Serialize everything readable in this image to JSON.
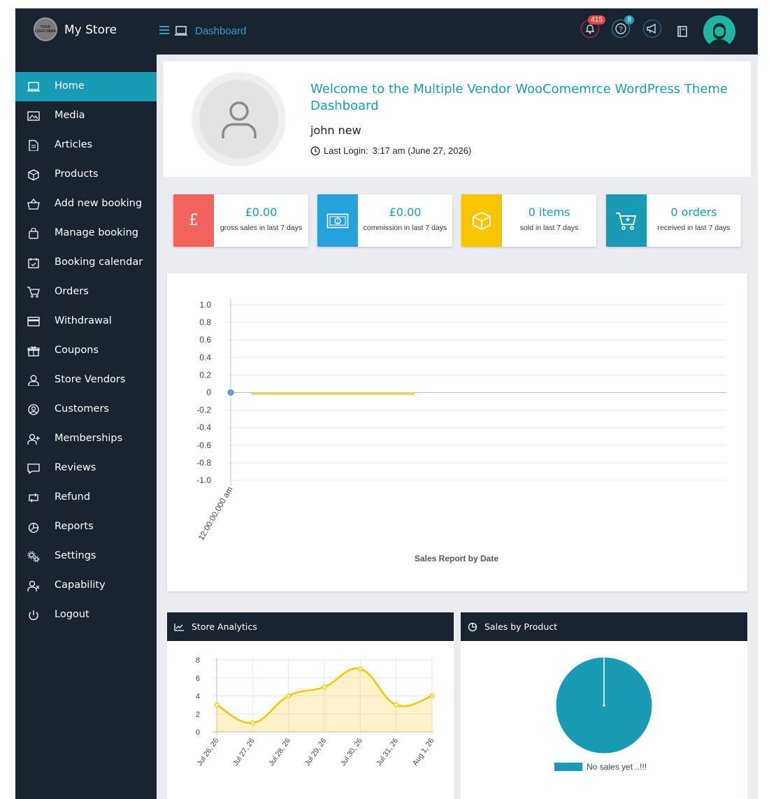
{
  "header": {
    "logo_text": "YOUR LOGO HERE",
    "store_name": "My Store",
    "breadcrumb": "Dashboard",
    "notifications_count": "415",
    "help_count": "8"
  },
  "sidebar": {
    "items": [
      {
        "label": "Home",
        "icon": "home-icon"
      },
      {
        "label": "Media",
        "icon": "media-icon"
      },
      {
        "label": "Articles",
        "icon": "articles-icon"
      },
      {
        "label": "Products",
        "icon": "products-icon"
      },
      {
        "label": "Add new booking",
        "icon": "basket-icon"
      },
      {
        "label": "Manage booking",
        "icon": "bag-icon"
      },
      {
        "label": "Booking calendar",
        "icon": "calendar-icon"
      },
      {
        "label": "Orders",
        "icon": "cart-icon"
      },
      {
        "label": "Withdrawal",
        "icon": "card-icon"
      },
      {
        "label": "Coupons",
        "icon": "gift-icon"
      },
      {
        "label": "Store Vendors",
        "icon": "user-icon"
      },
      {
        "label": "Customers",
        "icon": "user-circle-icon"
      },
      {
        "label": "Memberships",
        "icon": "user-plus-icon"
      },
      {
        "label": "Reviews",
        "icon": "comment-icon"
      },
      {
        "label": "Refund",
        "icon": "retweet-icon"
      },
      {
        "label": "Reports",
        "icon": "pie-icon"
      },
      {
        "label": "Settings",
        "icon": "gears-icon"
      },
      {
        "label": "Capability",
        "icon": "user-times-icon"
      },
      {
        "label": "Logout",
        "icon": "power-icon"
      }
    ]
  },
  "welcome": {
    "title": "Welcome to the Multiple Vendor WooComemrce WordPress Theme Dashboard",
    "username": "john new",
    "last_login_label": "Last Login:",
    "last_login_value": "3:17 am (June 27, 2026)"
  },
  "stats": [
    {
      "value": "£0.00",
      "label": "gross sales in last 7 days",
      "color": "#f4625d",
      "icon": "pound-icon"
    },
    {
      "value": "£0.00",
      "label": "commission in last 7 days",
      "color": "#23a1d8",
      "icon": "money-icon"
    },
    {
      "value": "0 items",
      "label": "sold in last 7 days",
      "color": "#f7c600",
      "icon": "cube-icon"
    },
    {
      "value": "0 orders",
      "label": "received in last 7 days",
      "color": "#1a9bb5",
      "icon": "cart-plus-icon"
    }
  ],
  "chart_data": [
    {
      "type": "line",
      "title": "Sales Report by Date",
      "x": [
        "12:00:00.000 am"
      ],
      "series": [
        {
          "values": [
            0
          ],
          "color": "#f7c600"
        }
      ],
      "ylim": [
        -1.0,
        1.0
      ],
      "yticks": [
        "1.0",
        "0.8",
        "0.6",
        "0.4",
        "0.2",
        "0",
        "-0.2",
        "-0.4",
        "-0.6",
        "-0.8",
        "-1.0"
      ],
      "grid": true
    },
    {
      "type": "area",
      "panel_title": "Store Analytics",
      "categories": [
        "Jul 26, 26",
        "Jul 27, 26",
        "Jul 28, 26",
        "Jul 29, 26",
        "Jul 30, 26",
        "Jul 31, 26",
        "Aug 1, 26"
      ],
      "values": [
        3,
        1,
        4,
        5,
        7,
        3,
        4
      ],
      "ylim": [
        0,
        8
      ],
      "yticks": [
        "8",
        "6",
        "4",
        "2",
        "0"
      ],
      "color": "#f7c600",
      "grid": true
    },
    {
      "type": "pie",
      "panel_title": "Sales by Product",
      "slices": [
        {
          "label": "No sales yet ..!!!",
          "value": 1,
          "color": "#1a9bb5"
        }
      ],
      "legend": "bottom"
    }
  ]
}
